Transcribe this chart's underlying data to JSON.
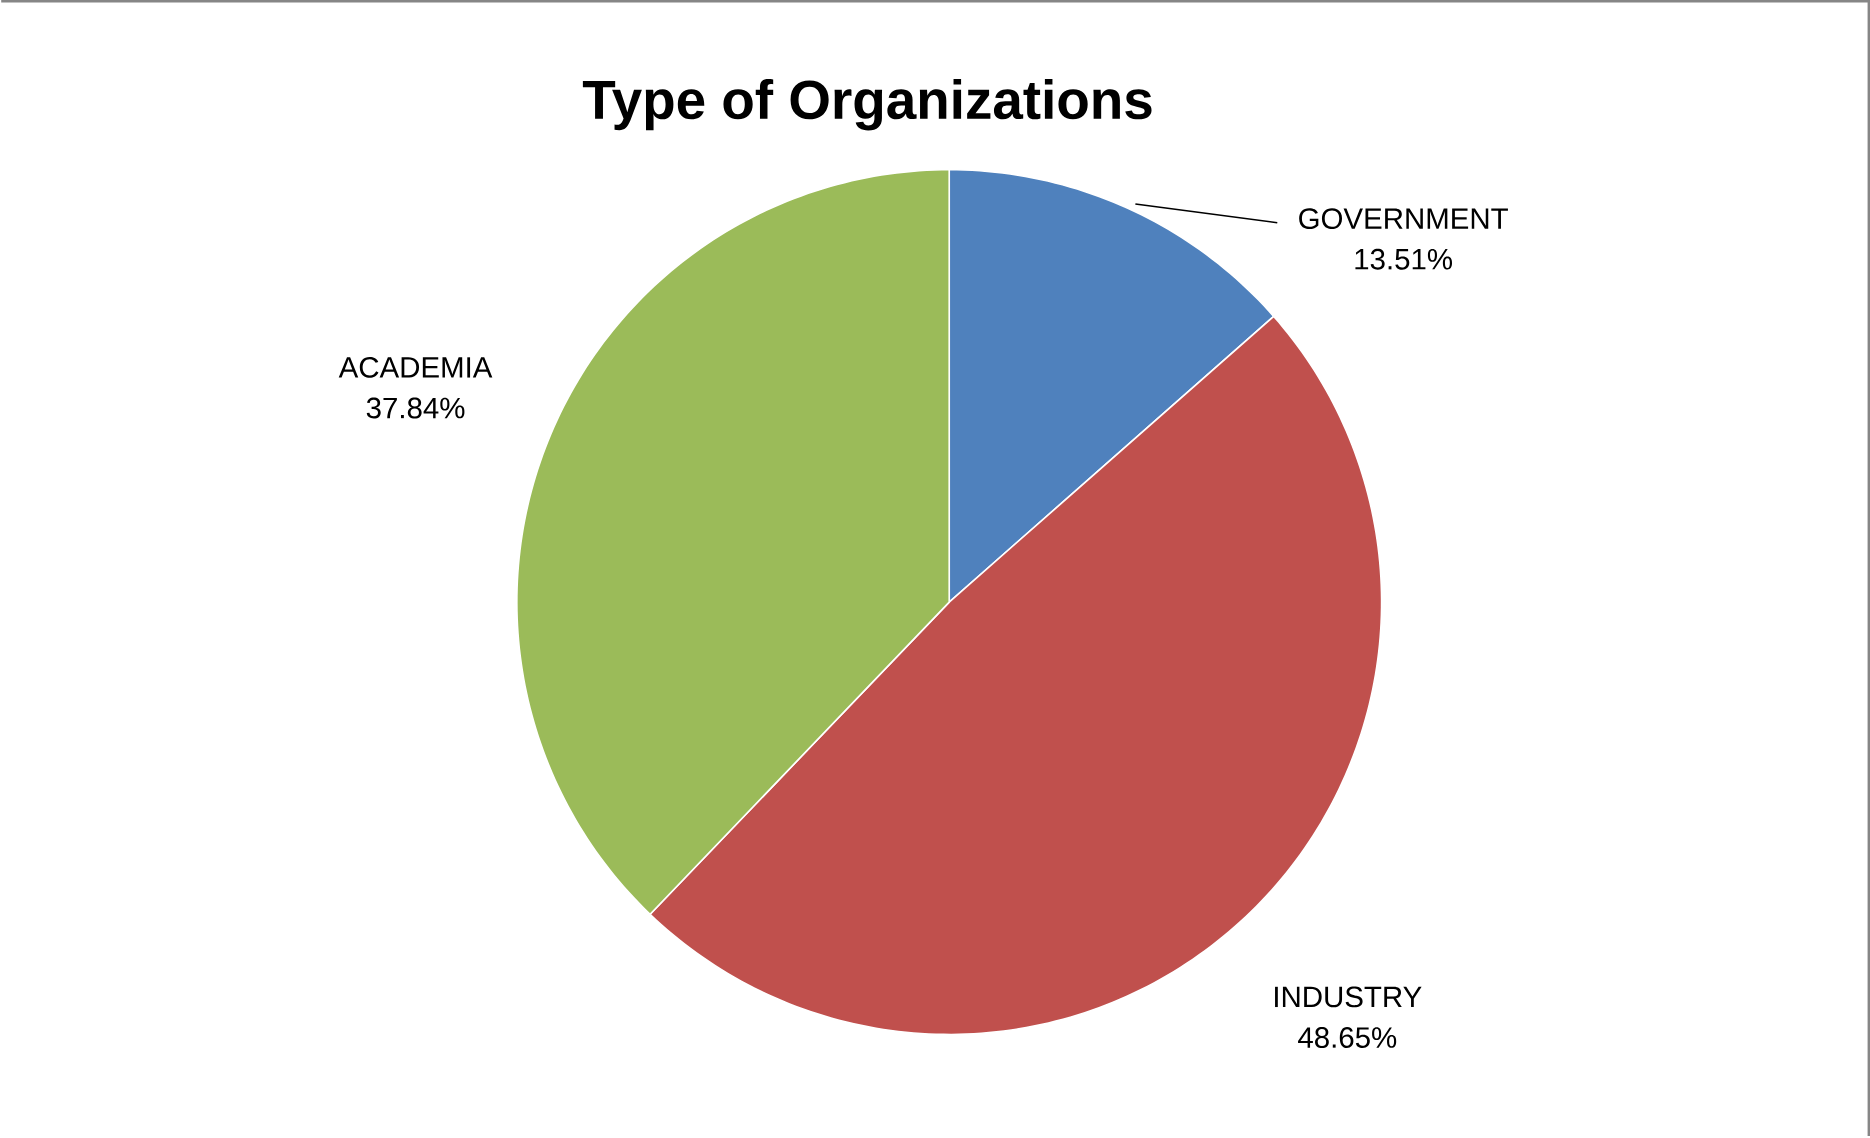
{
  "chart_data": {
    "type": "pie",
    "title": "Type of Organizations",
    "categories": [
      "GOVERNMENT",
      "INDUSTRY",
      "ACADEMIA"
    ],
    "values": [
      13.51,
      48.65,
      37.84
    ],
    "colors": [
      "#4f81bd",
      "#c0504d",
      "#9bbb59"
    ],
    "value_labels": [
      "13.51%",
      "48.65%",
      "37.84%"
    ]
  }
}
